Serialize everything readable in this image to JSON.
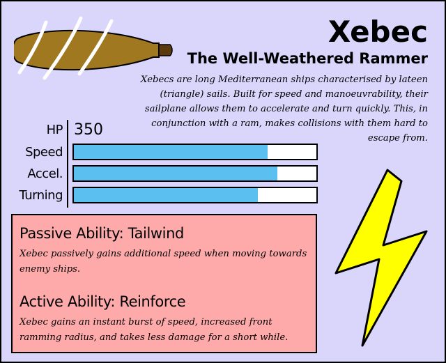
{
  "card": {
    "name": "Xebec",
    "subtitle": "The Well-Weathered Rammer",
    "description": "Xebecs are long Mediterranean ships characterised by lateen (triangle) sails. Built for speed and manoeuvrability, their sailplane allows them to accelerate and turn quickly. This, in conjunction with a ram, makes collisions with them hard to escape from.",
    "ship_icon": "ship-hull-icon",
    "class_icon": "lightning-bolt-icon",
    "colors": {
      "background": "#d9d5fb",
      "stat_bar_fill": "#5bc0f0",
      "ability_panel": "#ffaaaa",
      "hull": "#a0781f",
      "bolt": "#ffff00"
    }
  },
  "stats": {
    "hp": {
      "label": "HP",
      "value": "350"
    },
    "speed": {
      "label": "Speed",
      "level": 0.8
    },
    "accel": {
      "label": "Accel.",
      "level": 0.84
    },
    "turning": {
      "label": "Turning",
      "level": 0.76
    }
  },
  "abilities": {
    "passive": {
      "title": "Passive Ability: Tailwind",
      "text": "Xebec passively gains additional speed when moving towards enemy ships."
    },
    "active": {
      "title": "Active Ability: Reinforce",
      "text": "Xebec gains an instant burst of speed, increased front ramming radius, and takes less damage for a short while."
    }
  }
}
